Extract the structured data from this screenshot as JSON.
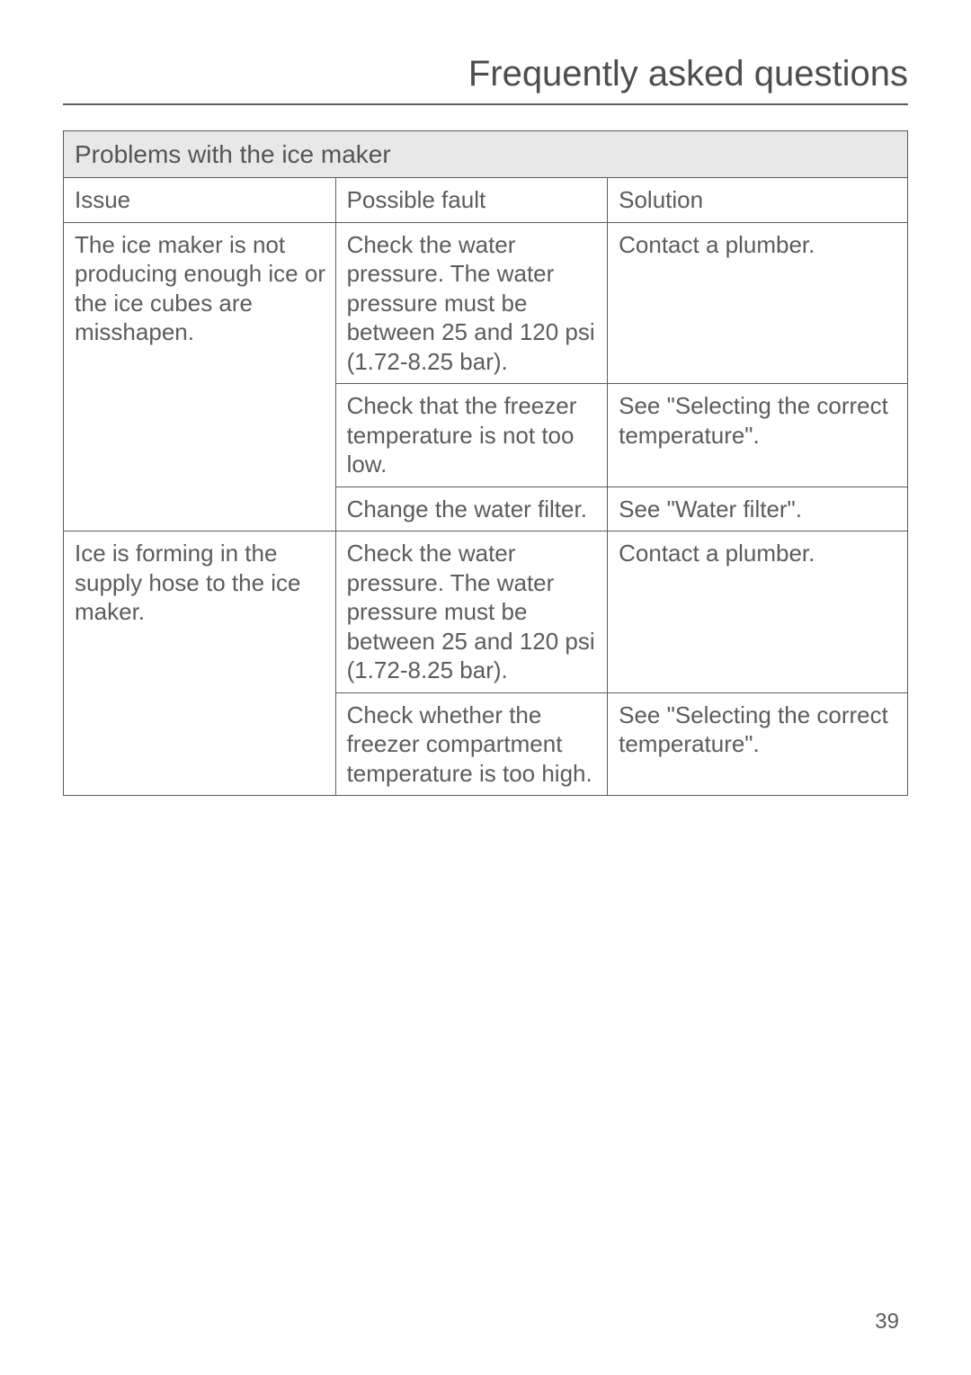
{
  "page": {
    "title": "Frequently asked questions",
    "number": "39"
  },
  "table": {
    "section_title": "Problems with the ice maker",
    "headers": {
      "issue": "Issue",
      "fault": "Possible fault",
      "solution": "Solution"
    },
    "rows": [
      {
        "issue": "The ice maker is not producing enough ice or the ice cubes are misshapen.",
        "fault": "Check the water pressure. The water pressure must be between 25 and 120 psi (1.72-8.25 bar).",
        "solution": "Contact a plumber."
      },
      {
        "issue": "",
        "fault": "Check that the freezer temperature is not too low.",
        "solution": "See \"Selecting the correct temperature\"."
      },
      {
        "issue": "",
        "fault": "Change the water filter.",
        "solution": "See \"Water filter\"."
      },
      {
        "issue": "Ice is forming in the supply hose to the ice maker.",
        "fault": "Check the water pressure. The water pressure must be between 25 and 120 psi (1.72-8.25 bar).",
        "solution": "Contact a plumber."
      },
      {
        "issue": "",
        "fault": "Check whether the freezer compartment temperature is too high.",
        "solution": "See \"Selecting the correct temperature\"."
      }
    ]
  }
}
